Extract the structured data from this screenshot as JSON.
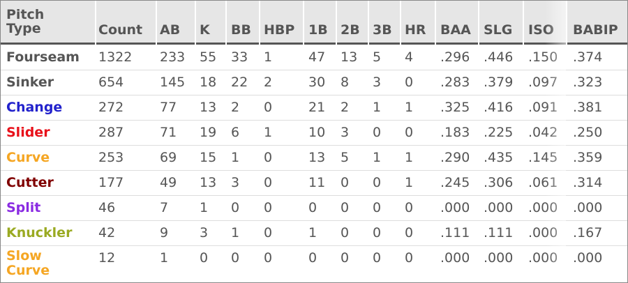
{
  "table": {
    "headers": [
      "Pitch Type",
      "Count",
      "AB",
      "K",
      "BB",
      "HBP",
      "1B",
      "2B",
      "3B",
      "HR",
      "BAA",
      "SLG",
      "ISO",
      "BABIP"
    ],
    "rows": [
      {
        "pitch": "Fourseam",
        "color": "#555555",
        "values": [
          "1322",
          "233",
          "55",
          "33",
          "1",
          "47",
          "13",
          "5",
          "4",
          ".296",
          ".446",
          ".150",
          ".374"
        ]
      },
      {
        "pitch": "Sinker",
        "color": "#555555",
        "values": [
          "654",
          "145",
          "18",
          "22",
          "2",
          "30",
          "8",
          "3",
          "0",
          ".283",
          ".379",
          ".097",
          ".323"
        ]
      },
      {
        "pitch": "Change",
        "color": "#2222cc",
        "values": [
          "272",
          "77",
          "13",
          "2",
          "0",
          "21",
          "2",
          "1",
          "1",
          ".325",
          ".416",
          ".091",
          ".381"
        ]
      },
      {
        "pitch": "Slider",
        "color": "#e8101a",
        "values": [
          "287",
          "71",
          "19",
          "6",
          "1",
          "10",
          "3",
          "0",
          "0",
          ".183",
          ".225",
          ".042",
          ".250"
        ]
      },
      {
        "pitch": "Curve",
        "color": "#f5a623",
        "values": [
          "253",
          "69",
          "15",
          "1",
          "0",
          "13",
          "5",
          "1",
          "1",
          ".290",
          ".435",
          ".145",
          ".359"
        ]
      },
      {
        "pitch": "Cutter",
        "color": "#800000",
        "values": [
          "177",
          "49",
          "13",
          "3",
          "0",
          "11",
          "0",
          "0",
          "1",
          ".245",
          ".306",
          ".061",
          ".314"
        ]
      },
      {
        "pitch": "Split",
        "color": "#8a2be2",
        "values": [
          "46",
          "7",
          "1",
          "0",
          "0",
          "0",
          "0",
          "0",
          "0",
          ".000",
          ".000",
          ".000",
          ".000"
        ]
      },
      {
        "pitch": "Knuckler",
        "color": "#9aaa22",
        "values": [
          "42",
          "9",
          "3",
          "1",
          "0",
          "1",
          "0",
          "0",
          "0",
          ".111",
          ".111",
          ".000",
          ".167"
        ]
      },
      {
        "pitch": "Slow Curve",
        "color": "#f5a623",
        "values": [
          "12",
          "1",
          "0",
          "0",
          "0",
          "0",
          "0",
          "0",
          "0",
          ".000",
          ".000",
          ".000",
          ".000"
        ]
      }
    ]
  }
}
